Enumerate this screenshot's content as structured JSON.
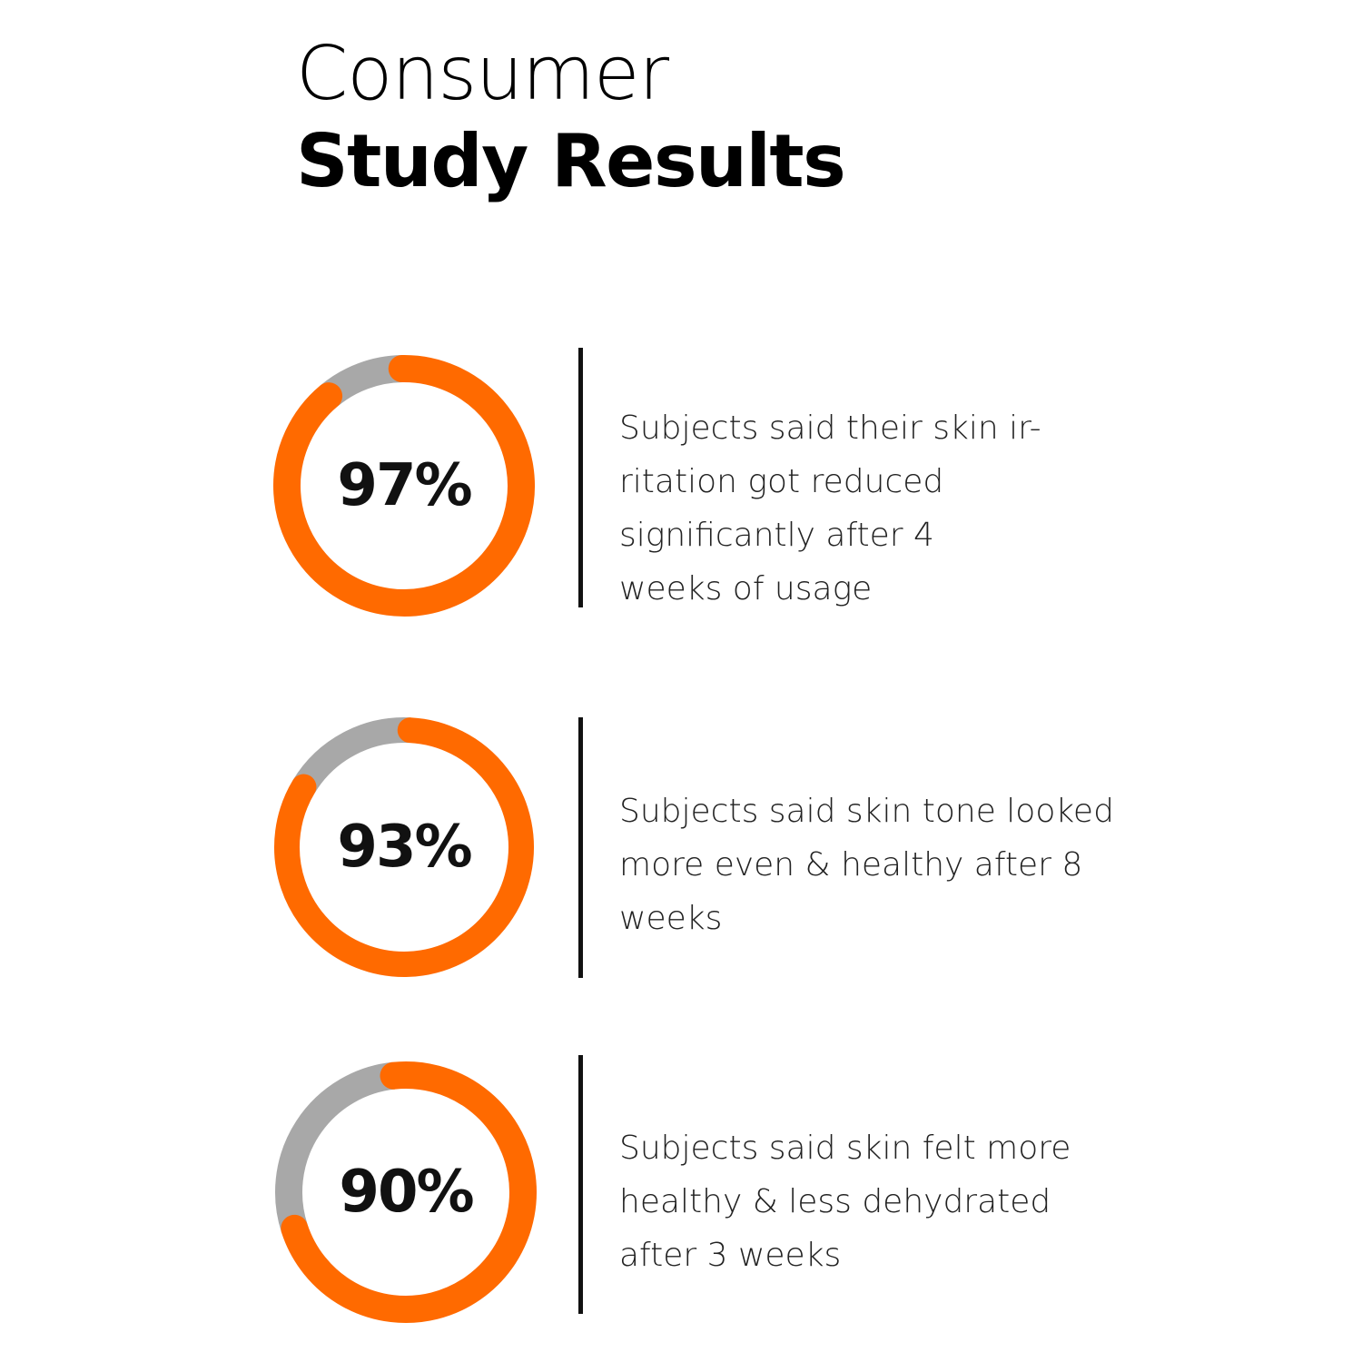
{
  "title": {
    "line1": "Consumer",
    "line2": "Study Results"
  },
  "colors": {
    "accent": "#ff6a00",
    "remainder": "#a8a8a8",
    "text": "#111111"
  },
  "chart_data": [
    {
      "type": "pie",
      "value": 97,
      "label": "97%",
      "description_lines": [
        "Subjects said their skin ir-",
        "ritation got reduced",
        "significantly after 4",
        "weeks of usage"
      ]
    },
    {
      "type": "pie",
      "value": 93,
      "label": "93%",
      "description_lines": [
        "Subjects said skin tone looked",
        "more even & healthy after 8",
        "weeks"
      ]
    },
    {
      "type": "pie",
      "value": 90,
      "label": "90%",
      "description_lines": [
        "Subjects said skin felt more",
        "healthy & less dehydrated",
        "after 3 weeks"
      ]
    }
  ]
}
